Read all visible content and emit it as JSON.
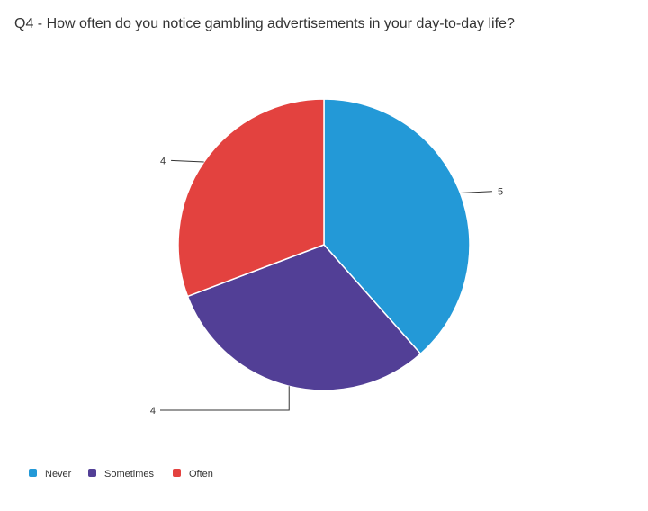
{
  "chart_data": {
    "type": "pie",
    "title": "Q4 - How often do you notice gambling advertisements in your day-to-day life?",
    "categories": [
      "Never",
      "Sometimes",
      "Often"
    ],
    "values": [
      5,
      4,
      4
    ],
    "colors": [
      "#2399d7",
      "#523f96",
      "#e3423f"
    ],
    "data_labels": [
      "5",
      "4",
      "4"
    ],
    "legend": {
      "position": "bottom-left",
      "entries": [
        "Never",
        "Sometimes",
        "Often"
      ]
    }
  }
}
